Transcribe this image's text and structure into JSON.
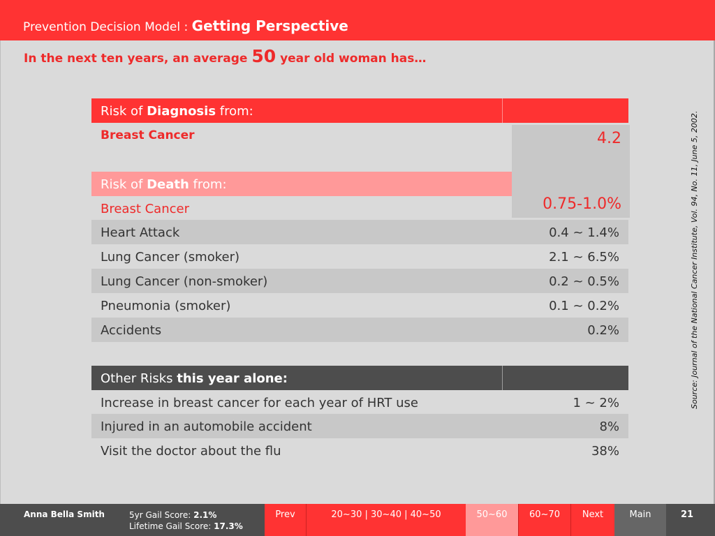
{
  "header": {
    "prefix": "Prevention Decision Model : ",
    "title": "Getting Perspective"
  },
  "subtitle": {
    "before": "In the next ten years, an average ",
    "age": "50",
    "after": " year old woman has…"
  },
  "source": "Source: Journal of the National Cancer Institute, Vol. 94, No. 11, June 5, 2002.",
  "diagnosis": {
    "header_pre": "Risk of ",
    "header_bold": "Diagnosis",
    "header_post": " from:",
    "label": "Breast Cancer",
    "value": "4.2"
  },
  "death": {
    "header_pre": "Risk of ",
    "header_bold": "Death",
    "header_post": " from:",
    "highlight_label": "Breast Cancer",
    "highlight_value": "0.75-1.0%",
    "rows": [
      {
        "label": "Heart Attack",
        "value": "0.4 ~ 1.4%"
      },
      {
        "label": "Lung Cancer (smoker)",
        "value": "2.1 ~ 6.5%"
      },
      {
        "label": "Lung Cancer (non-smoker)",
        "value": "0.2 ~ 0.5%"
      },
      {
        "label": "Pneumonia (smoker)",
        "value": "0.1 ~ 0.2%"
      },
      {
        "label": "Accidents",
        "value": "0.2%"
      }
    ]
  },
  "other": {
    "header_pre": "Other Risks ",
    "header_bold": "this year alone:",
    "rows": [
      {
        "label": "Increase in breast cancer for each year of HRT use",
        "value": "1 ~ 2%"
      },
      {
        "label": "Injured in an automobile accident",
        "value": "8%"
      },
      {
        "label": "Visit the doctor about the flu",
        "value": "38%"
      }
    ]
  },
  "footer": {
    "patient_name": "Anna Bella Smith",
    "gail5_label": "5yr Gail Score: ",
    "gail5_value": "2.1%",
    "lifetime_label": "Lifetime Gail Score: ",
    "lifetime_value": "17.3%",
    "prev": "Prev",
    "age_ranges": "20~30  |  30~40  |  40~50",
    "current_range": "50~60",
    "next_range": "60~70",
    "next": "Next",
    "main": "Main",
    "page": "21"
  },
  "colors": {
    "brand_red": "#ff3333",
    "pink": "#ff9999",
    "dark_gray": "#4d4d4d"
  }
}
